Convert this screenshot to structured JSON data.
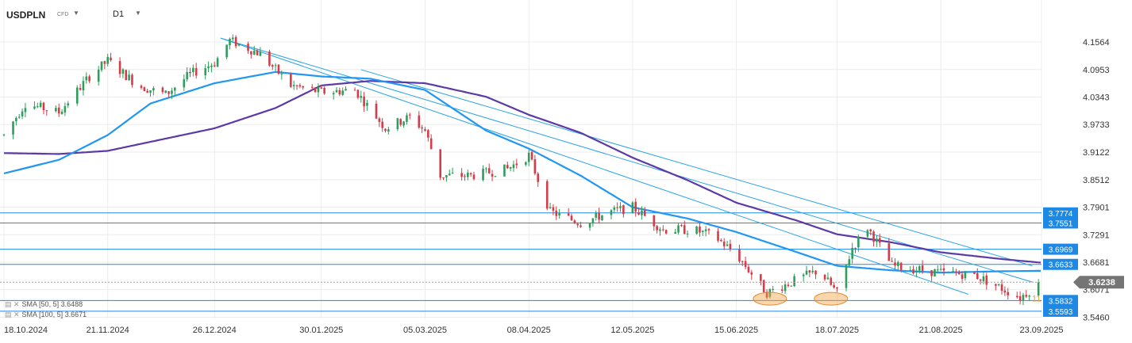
{
  "header": {
    "symbol": "USDPLN",
    "instrument_type": "CFD",
    "timeframe": "D1"
  },
  "indicators": [
    {
      "label": "SMA [50, 5] 3.6488",
      "color": "#2196f3"
    },
    {
      "label": "SMA [100, 5] 3.6671",
      "color": "#5c3aa6"
    }
  ],
  "chart_data": {
    "type": "candlestick",
    "symbol": "USDPLN",
    "timeframe": "D1",
    "x_tick_labels": [
      "18.10.2024",
      "21.11.2024",
      "26.12.2024",
      "30.01.2025",
      "05.03.2025",
      "08.04.2025",
      "12.05.2025",
      "15.06.2025",
      "18.07.2025",
      "21.08.2025",
      "23.09.2025"
    ],
    "y_tick_labels": [
      "4.1564",
      "4.0953",
      "4.0343",
      "3.9733",
      "3.9122",
      "3.8512",
      "3.7901",
      "3.7291",
      "3.6681",
      "3.6071",
      "3.5460"
    ],
    "ylim": [
      3.546,
      4.18
    ],
    "grid": true,
    "last_price": 3.6238,
    "last_price_label": "3.6238",
    "horizontal_levels": [
      {
        "label": "3.7774",
        "value": 3.7774
      },
      {
        "label": "3.7551",
        "value": 3.7551
      },
      {
        "label": "3.6969",
        "value": 3.6969
      },
      {
        "label": "3.6633",
        "value": 3.6633
      },
      {
        "label": "3.5832",
        "value": 3.5832
      },
      {
        "label": "3.5593",
        "value": 3.5593
      }
    ],
    "overlay_text": "11",
    "sma50_keyframes": [
      [
        "18.10.2024",
        3.865
      ],
      [
        "05.11.2024",
        3.895
      ],
      [
        "21.11.2024",
        3.95
      ],
      [
        "05.12.2024",
        4.02
      ],
      [
        "26.12.2024",
        4.065
      ],
      [
        "15.01.2025",
        4.09
      ],
      [
        "30.01.2025",
        4.08
      ],
      [
        "15.02.2025",
        4.075
      ],
      [
        "05.03.2025",
        4.05
      ],
      [
        "25.03.2025",
        3.96
      ],
      [
        "08.04.2025",
        3.92
      ],
      [
        "25.04.2025",
        3.86
      ],
      [
        "12.05.2025",
        3.79
      ],
      [
        "30.05.2025",
        3.765
      ],
      [
        "15.06.2025",
        3.735
      ],
      [
        "05.07.2025",
        3.69
      ],
      [
        "18.07.2025",
        3.66
      ],
      [
        "05.08.2025",
        3.65
      ],
      [
        "21.08.2025",
        3.645
      ],
      [
        "10.09.2025",
        3.648
      ],
      [
        "23.09.2025",
        3.649
      ]
    ],
    "sma100_keyframes": [
      [
        "18.10.2024",
        3.91
      ],
      [
        "05.11.2024",
        3.908
      ],
      [
        "21.11.2024",
        3.915
      ],
      [
        "05.12.2024",
        3.935
      ],
      [
        "26.12.2024",
        3.965
      ],
      [
        "15.01.2025",
        4.01
      ],
      [
        "30.01.2025",
        4.06
      ],
      [
        "15.02.2025",
        4.07
      ],
      [
        "05.03.2025",
        4.065
      ],
      [
        "25.03.2025",
        4.035
      ],
      [
        "08.04.2025",
        3.995
      ],
      [
        "25.04.2025",
        3.955
      ],
      [
        "12.05.2025",
        3.9
      ],
      [
        "30.05.2025",
        3.85
      ],
      [
        "15.06.2025",
        3.8
      ],
      [
        "05.07.2025",
        3.76
      ],
      [
        "18.07.2025",
        3.73
      ],
      [
        "05.08.2025",
        3.712
      ],
      [
        "21.08.2025",
        3.69
      ],
      [
        "10.09.2025",
        3.675
      ],
      [
        "23.09.2025",
        3.667
      ]
    ],
    "price_keyframes": [
      [
        "18.10.2024",
        3.95
      ],
      [
        "25.10.2024",
        4.02
      ],
      [
        "05.11.2024",
        4.0
      ],
      [
        "15.11.2024",
        4.08
      ],
      [
        "21.11.2024",
        4.115
      ],
      [
        "01.12.2024",
        4.06
      ],
      [
        "10.12.2024",
        4.04
      ],
      [
        "18.12.2024",
        4.085
      ],
      [
        "26.12.2024",
        4.11
      ],
      [
        "31.12.2024",
        4.16
      ],
      [
        "10.01.2025",
        4.13
      ],
      [
        "20.01.2025",
        4.06
      ],
      [
        "30.01.2025",
        4.045
      ],
      [
        "10.02.2025",
        4.05
      ],
      [
        "20.02.2025",
        3.965
      ],
      [
        "28.02.2025",
        3.99
      ],
      [
        "05.03.2025",
        3.96
      ],
      [
        "10.03.2025",
        3.86
      ],
      [
        "20.03.2025",
        3.86
      ],
      [
        "01.04.2025",
        3.875
      ],
      [
        "08.04.2025",
        3.905
      ],
      [
        "15.04.2025",
        3.78
      ],
      [
        "25.04.2025",
        3.755
      ],
      [
        "05.05.2025",
        3.78
      ],
      [
        "12.05.2025",
        3.79
      ],
      [
        "22.05.2025",
        3.74
      ],
      [
        "01.06.2025",
        3.74
      ],
      [
        "08.06.2025",
        3.725
      ],
      [
        "15.06.2025",
        3.685
      ],
      [
        "25.06.2025",
        3.6
      ],
      [
        "05.07.2025",
        3.63
      ],
      [
        "12.07.2025",
        3.65
      ],
      [
        "18.07.2025",
        3.6
      ],
      [
        "23.07.2025",
        3.7
      ],
      [
        "28.07.2025",
        3.745
      ],
      [
        "05.08.2025",
        3.66
      ],
      [
        "21.08.2025",
        3.645
      ],
      [
        "01.09.2025",
        3.64
      ],
      [
        "10.09.2025",
        3.61
      ],
      [
        "16.09.2025",
        3.59
      ],
      [
        "23.09.2025",
        3.624
      ]
    ],
    "trendlines": [
      {
        "from": [
          "28.12.2024",
          4.165
        ],
        "to": [
          "20.09.2025",
          3.624
        ]
      },
      {
        "from": [
          "28.12.2024",
          4.165
        ],
        "to": [
          "30.08.2025",
          3.597
        ]
      },
      {
        "from": [
          "12.02.2025",
          4.095
        ],
        "to": [
          "20.09.2025",
          3.66
        ]
      }
    ],
    "highlight_zones": [
      {
        "label": "",
        "x": "26.06.2025",
        "y": 3.587
      },
      {
        "label": "",
        "x": "16.07.2025",
        "y": 3.587
      }
    ]
  }
}
